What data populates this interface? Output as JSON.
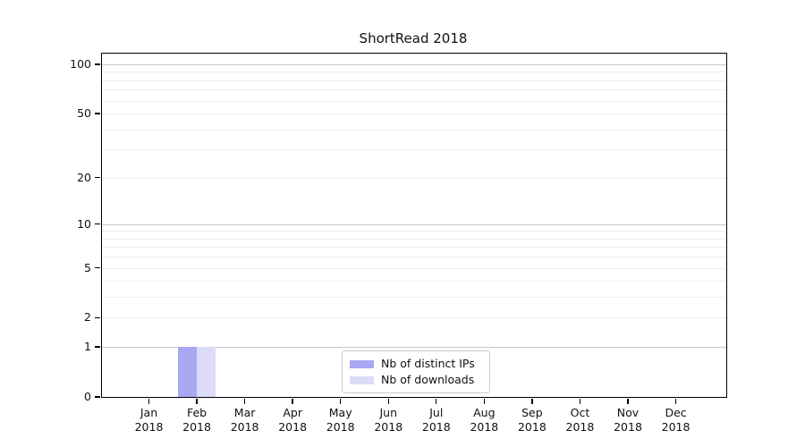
{
  "figure": {
    "title": "ShortRead 2018",
    "background": "#ffffff"
  },
  "chart_data": {
    "type": "bar",
    "title": "ShortRead 2018",
    "xlabel": "",
    "ylabel": "",
    "x_months": [
      "Jan",
      "Feb",
      "Mar",
      "Apr",
      "May",
      "Jun",
      "Jul",
      "Aug",
      "Sep",
      "Oct",
      "Nov",
      "Dec"
    ],
    "x_year": "2018",
    "series": [
      {
        "name": "Nb of distinct IPs",
        "color": "#a8a8f2",
        "values": [
          0,
          1,
          0,
          0,
          0,
          0,
          0,
          0,
          0,
          0,
          0,
          0
        ]
      },
      {
        "name": "Nb of downloads",
        "color": "#dcdcf8",
        "values": [
          0,
          1,
          0,
          0,
          0,
          0,
          0,
          0,
          0,
          0,
          0,
          0
        ]
      }
    ],
    "y_scale": "log1p",
    "ylim": [
      0,
      100
    ],
    "y_ticks": [
      0,
      1,
      2,
      5,
      10,
      20,
      50,
      100
    ],
    "y_grid_major": [
      1,
      10,
      100
    ],
    "y_grid_minor": [
      2,
      3,
      4,
      5,
      6,
      7,
      8,
      9,
      20,
      30,
      40,
      50,
      60,
      70,
      80,
      90
    ],
    "grid": "horizontal",
    "legend_position": "bottom-center"
  },
  "colors": {
    "axis": "#000000",
    "grid_major": "#c6c6c6",
    "grid_minor": "#ededed",
    "text": "#111111"
  }
}
